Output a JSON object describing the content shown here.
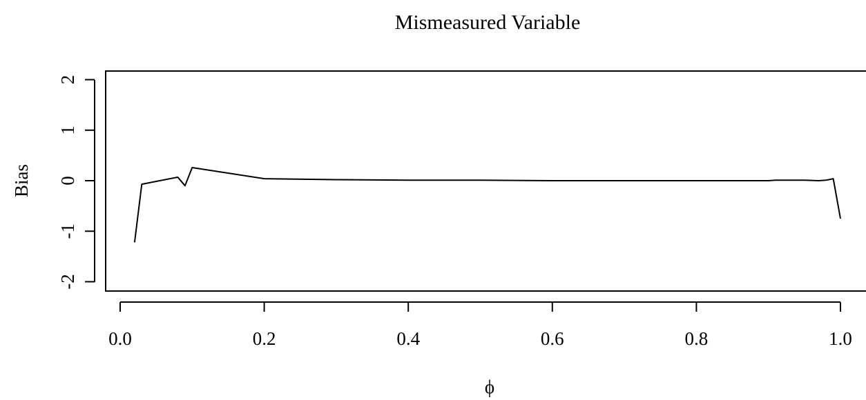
{
  "chart_data": {
    "type": "line",
    "title": "Mismeasured Variable",
    "xlabel": "ϕ",
    "ylabel": "Bias",
    "xlim": [
      0.0,
      1.0
    ],
    "ylim": [
      -2,
      2
    ],
    "x_ticks": [
      0.0,
      0.2,
      0.4,
      0.6,
      0.8,
      1.0
    ],
    "x_tick_labels": [
      "0.0",
      "0.2",
      "0.4",
      "0.6",
      "0.8",
      "1.0"
    ],
    "y_ticks": [
      -2,
      -1,
      0,
      1,
      2
    ],
    "y_tick_labels": [
      "-2",
      "-1",
      "0",
      "1",
      "2"
    ],
    "grid": false,
    "line_color": "#000000",
    "series": [
      {
        "x": [
          0.02,
          0.03,
          0.08,
          0.09,
          0.1,
          0.2,
          0.3,
          0.4,
          0.5,
          0.6,
          0.7,
          0.8,
          0.9,
          0.91,
          0.95,
          0.97,
          0.98,
          0.99,
          1.0
        ],
        "y": [
          -1.22,
          -0.07,
          0.07,
          -0.1,
          0.26,
          0.04,
          0.02,
          0.01,
          0.01,
          0.0,
          0.0,
          0.0,
          0.0,
          0.01,
          0.01,
          0.0,
          0.01,
          0.04,
          -0.75
        ]
      }
    ]
  }
}
